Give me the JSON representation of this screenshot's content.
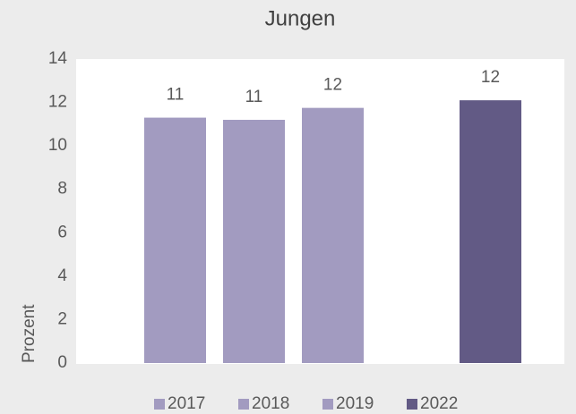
{
  "chart_data": {
    "type": "bar",
    "title": "Jungen",
    "y_label": "Prozent",
    "categories": [
      null
    ],
    "series": [
      {
        "name": "2017",
        "color": "#a29bc0",
        "values": [
          11.3
        ],
        "value_labels": [
          "11"
        ]
      },
      {
        "name": "2018",
        "color": "#a29bc0",
        "values": [
          11.2
        ],
        "value_labels": [
          "11"
        ]
      },
      {
        "name": "2019",
        "color": "#a29bc0",
        "values": [
          11.75
        ],
        "value_labels": [
          "12"
        ]
      },
      {
        "name": "2022",
        "color": "#625a85",
        "values": [
          12.1
        ],
        "value_labels": [
          "12"
        ]
      }
    ],
    "ylim": [
      0,
      14
    ],
    "yticks": [
      0,
      2,
      4,
      6,
      8,
      10,
      12,
      14
    ],
    "grid": false,
    "legend": "bottom"
  }
}
